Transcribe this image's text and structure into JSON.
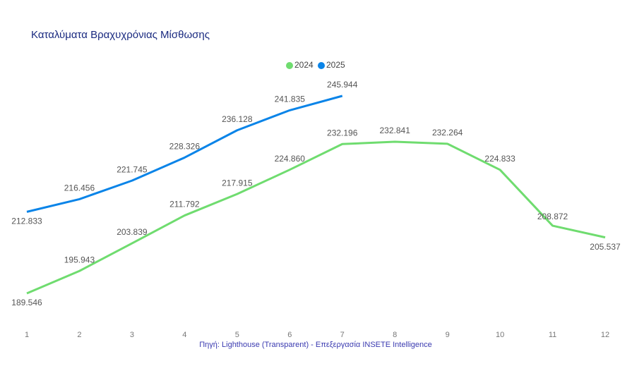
{
  "chart_data": {
    "type": "line",
    "title": "Καταλύματα Βραχυχρόνιας Μίσθωσης",
    "source": "Πηγή: Lighthouse (Transparent) - Επεξεργασία INSETE Intelligence",
    "categories": [
      "1",
      "2",
      "3",
      "4",
      "5",
      "6",
      "7",
      "8",
      "9",
      "10",
      "11",
      "12"
    ],
    "series": [
      {
        "name": "2024",
        "color": "#6fdc6f",
        "values": [
          189546,
          195943,
          203839,
          211792,
          217915,
          224860,
          232196,
          232841,
          232264,
          224833,
          208872,
          205537
        ],
        "value_labels": [
          "189.546",
          "195.943",
          "203.839",
          "211.792",
          "217.915",
          "224.860",
          "232.196",
          "232.841",
          "232.264",
          "224.833",
          "208.872",
          "205.537"
        ]
      },
      {
        "name": "2025",
        "color": "#0a84e8",
        "values": [
          212833,
          216456,
          221745,
          228326,
          236128,
          241835,
          245944,
          null,
          null,
          null,
          null,
          null
        ],
        "value_labels": [
          "212.833",
          "216.456",
          "221.745",
          "228.326",
          "236.128",
          "241.835",
          "245.944",
          null,
          null,
          null,
          null,
          null
        ]
      }
    ],
    "legend": "top"
  }
}
